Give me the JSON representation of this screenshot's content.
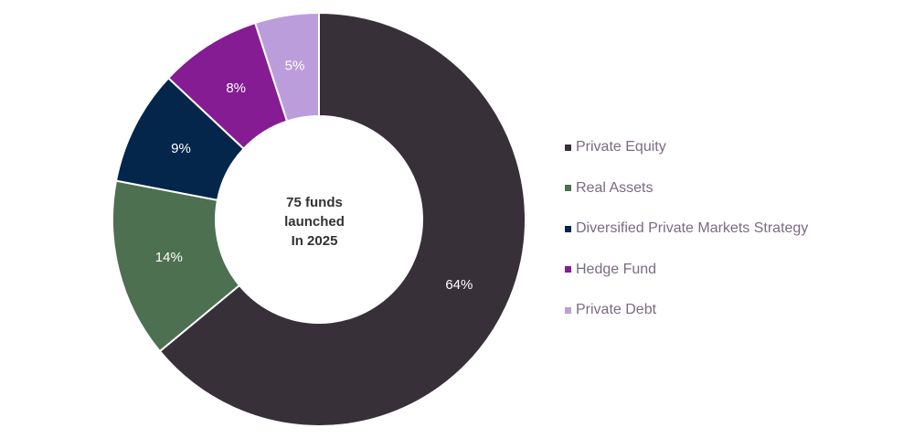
{
  "chart_data": {
    "type": "pie",
    "donut": true,
    "center_text": [
      "75 funds",
      "launched",
      "In 2025"
    ],
    "slices": [
      {
        "name": "Private Equity",
        "value": 64,
        "label": "64%",
        "color": "#383039"
      },
      {
        "name": "Real Assets",
        "value": 14,
        "label": "14%",
        "color": "#4d7050"
      },
      {
        "name": "Diversified Private Markets Strategy",
        "value": 9,
        "label": "9%",
        "color": "#04264a"
      },
      {
        "name": "Hedge Fund",
        "value": 8,
        "label": "8%",
        "color": "#861c94"
      },
      {
        "name": "Private Debt",
        "value": 5,
        "label": "5%",
        "color": "#bc9ddc"
      }
    ],
    "legend_position": "right"
  }
}
